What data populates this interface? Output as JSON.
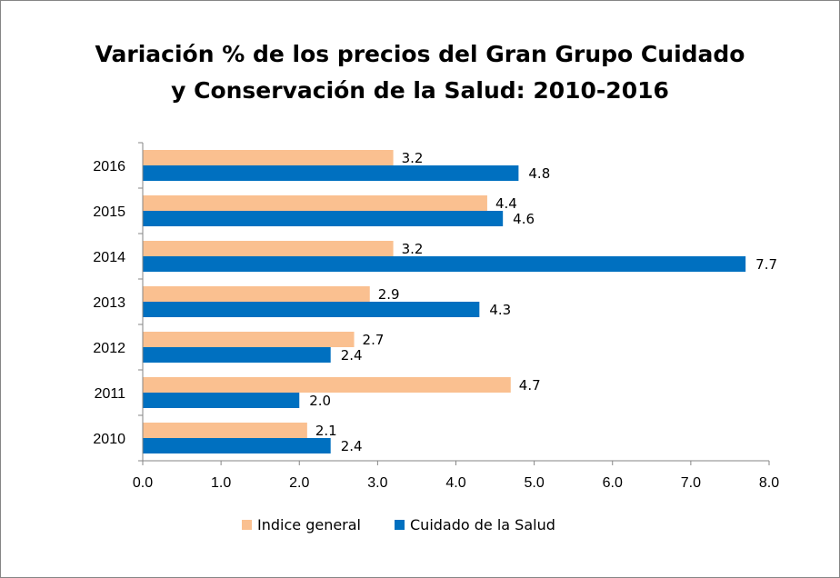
{
  "chart_data": {
    "type": "bar",
    "orientation": "horizontal",
    "title_line1": "Variación % de los precios del Gran Grupo Cuidado",
    "title_line2": "y Conservación de la Salud: 2010-2016",
    "categories": [
      "2010",
      "2011",
      "2012",
      "2013",
      "2014",
      "2015",
      "2016"
    ],
    "series": [
      {
        "name": "Indice general",
        "color": "#FAC090",
        "values": [
          2.1,
          4.7,
          2.7,
          2.9,
          3.2,
          4.4,
          3.2
        ],
        "labels": [
          "2.1",
          "4.7",
          "2.7",
          "2.9",
          "3.2",
          "4.4",
          "3.2"
        ]
      },
      {
        "name": "Cuidado de la Salud",
        "color": "#0070C0",
        "values": [
          2.4,
          2.0,
          2.4,
          4.3,
          7.7,
          4.6,
          4.8
        ],
        "labels": [
          "2.4",
          "2.0",
          "2.4",
          "4.3",
          "7.7",
          "4.6",
          "4.8"
        ]
      }
    ],
    "xlim": [
      0,
      8
    ],
    "xticks": [
      "0.0",
      "1.0",
      "2.0",
      "3.0",
      "4.0",
      "5.0",
      "6.0",
      "7.0",
      "8.0"
    ],
    "xlabel": "",
    "ylabel": "",
    "grid": false,
    "legend_position": "bottom"
  }
}
